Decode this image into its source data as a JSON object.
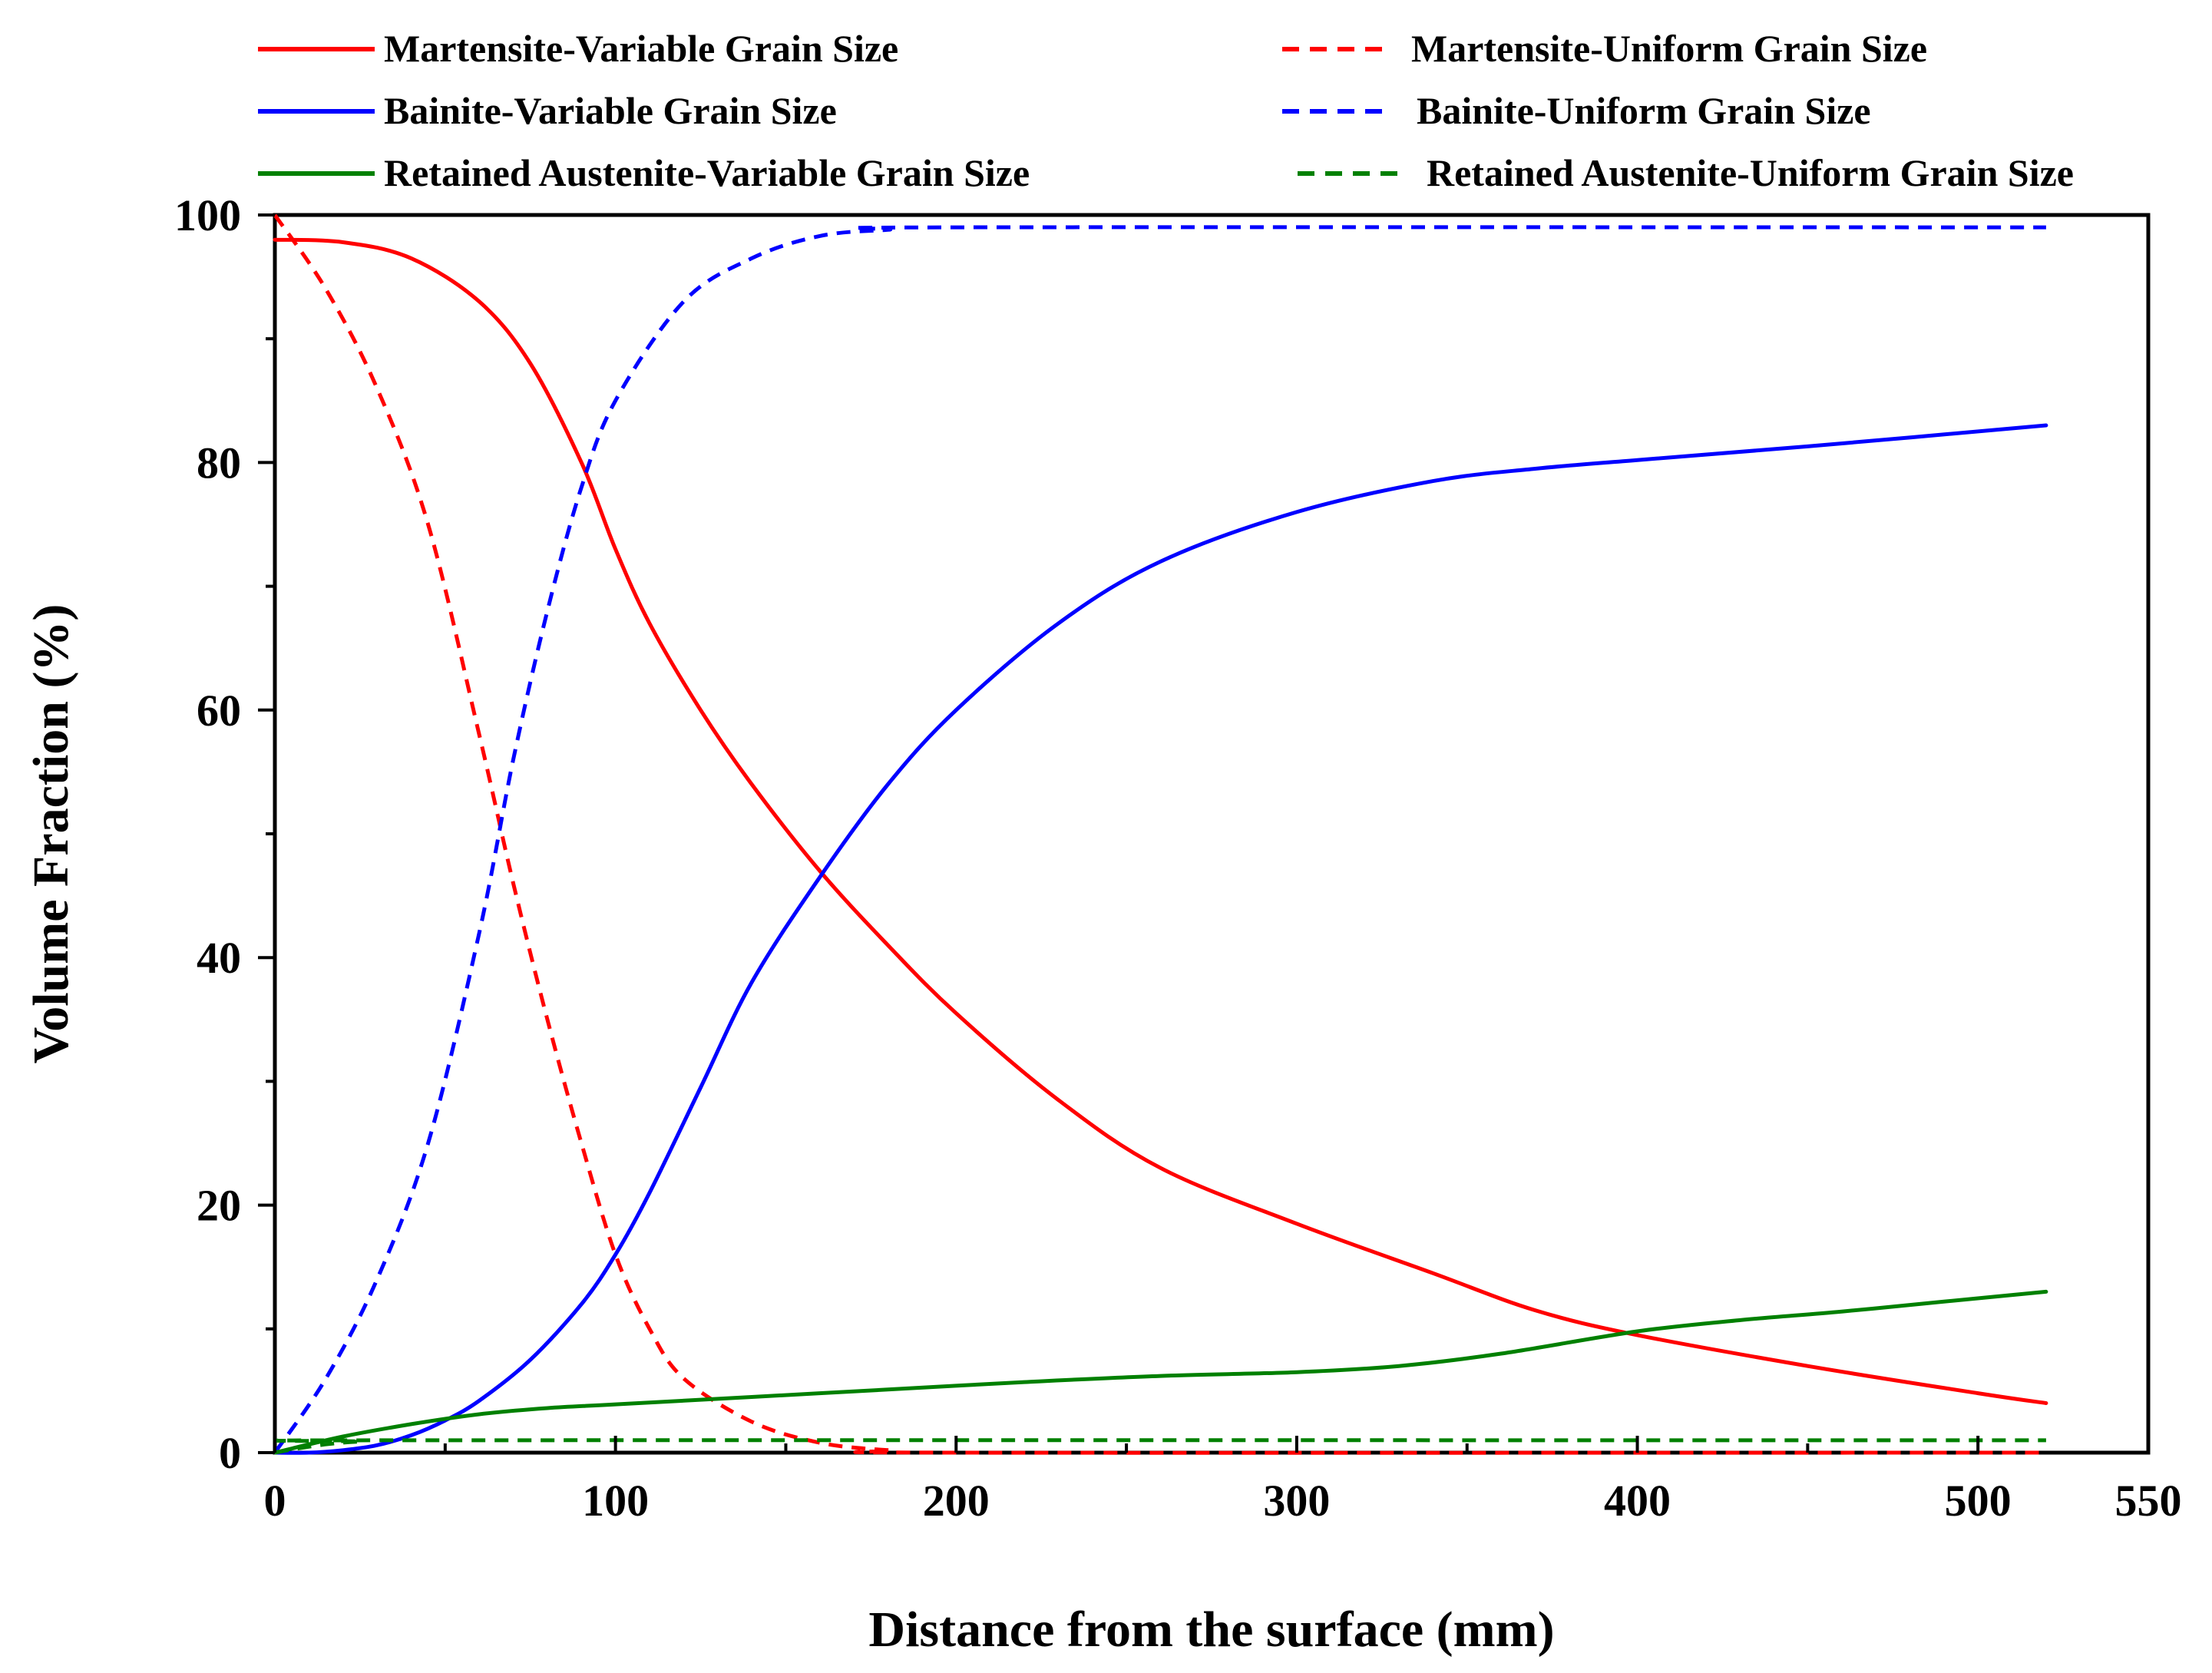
{
  "chart_data": {
    "type": "line",
    "title": "",
    "xlabel": "Distance from the surface (mm)",
    "ylabel": "Volume Fraction (%)",
    "xlim": [
      0,
      550
    ],
    "ylim": [
      0,
      100
    ],
    "xticks": [
      0,
      100,
      200,
      300,
      400,
      500,
      550
    ],
    "xtick_labels": [
      "0",
      "100",
      "200",
      "300",
      "400",
      "500",
      "550"
    ],
    "xminor": [
      50,
      150,
      250,
      350,
      450
    ],
    "yticks": [
      0,
      20,
      40,
      60,
      80,
      100
    ],
    "ytick_labels": [
      "0",
      "20",
      "40",
      "60",
      "80",
      "100"
    ],
    "yminor": [
      10,
      30,
      50,
      70,
      90
    ],
    "grid": false,
    "legend_position": "top",
    "series": [
      {
        "name": "Martensite-Variable Grain Size",
        "color": "#ff0000",
        "dash": "solid",
        "x": [
          0,
          20,
          40,
          60,
          75,
          90,
          100,
          110,
          125,
          140,
          160,
          180,
          200,
          230,
          260,
          300,
          340,
          370,
          400,
          450,
          500,
          520
        ],
        "y": [
          98,
          97.8,
          96.5,
          93,
          88,
          80,
          73,
          67,
          60,
          54,
          47,
          41,
          35.5,
          28.5,
          23,
          18.5,
          14.5,
          11.5,
          9.5,
          7,
          4.8,
          4
        ]
      },
      {
        "name": "Martensite-Uniform Grain Size",
        "color": "#ff0000",
        "dash": "dashed",
        "x": [
          0,
          15,
          30,
          45,
          60,
          70,
          80,
          90,
          100,
          110,
          120,
          140,
          160,
          180,
          200,
          520
        ],
        "y": [
          100,
          94,
          86,
          75,
          58,
          46,
          35,
          25,
          16,
          10,
          6,
          2.5,
          0.8,
          0.2,
          0,
          0
        ]
      },
      {
        "name": "Bainite-Variable Grain Size",
        "color": "#0000ff",
        "dash": "solid",
        "x": [
          0,
          10,
          20,
          30,
          40,
          50,
          60,
          75,
          90,
          100,
          110,
          125,
          140,
          160,
          180,
          200,
          230,
          260,
          300,
          340,
          370,
          400,
          450,
          520
        ],
        "y": [
          0,
          0,
          0.2,
          0.6,
          1.4,
          2.6,
          4.2,
          7.5,
          12,
          16,
          21,
          29.5,
          38,
          46.5,
          54,
          60,
          67,
          72,
          76,
          78.5,
          79.5,
          80.2,
          81.3,
          83
        ]
      },
      {
        "name": "Bainite-Uniform Grain Size",
        "color": "#0000ff",
        "dash": "dashed",
        "x": [
          0,
          15,
          30,
          45,
          60,
          70,
          80,
          90,
          100,
          120,
          140,
          160,
          180,
          200,
          520
        ],
        "y": [
          0,
          6,
          14,
          25,
          42,
          56,
          68,
          78,
          85,
          93,
          96.5,
          98.3,
          98.8,
          99,
          99
        ]
      },
      {
        "name": "Retained Austenite-Variable Grain Size",
        "color": "#008000",
        "dash": "solid",
        "x": [
          0,
          20,
          40,
          60,
          80,
          100,
          140,
          180,
          220,
          260,
          300,
          330,
          360,
          400,
          430,
          460,
          490,
          520
        ],
        "y": [
          0,
          1.3,
          2.3,
          3.1,
          3.6,
          3.9,
          4.5,
          5.1,
          5.7,
          6.2,
          6.5,
          7,
          8,
          9.8,
          10.7,
          11.4,
          12.2,
          13
        ]
      },
      {
        "name": "Retained Austenite-Uniform Grain Size",
        "color": "#008000",
        "dash": "dashed",
        "x": [
          0,
          8,
          16,
          25,
          40,
          520
        ],
        "y": [
          0,
          0.4,
          0.7,
          0.9,
          1,
          1
        ]
      }
    ]
  }
}
